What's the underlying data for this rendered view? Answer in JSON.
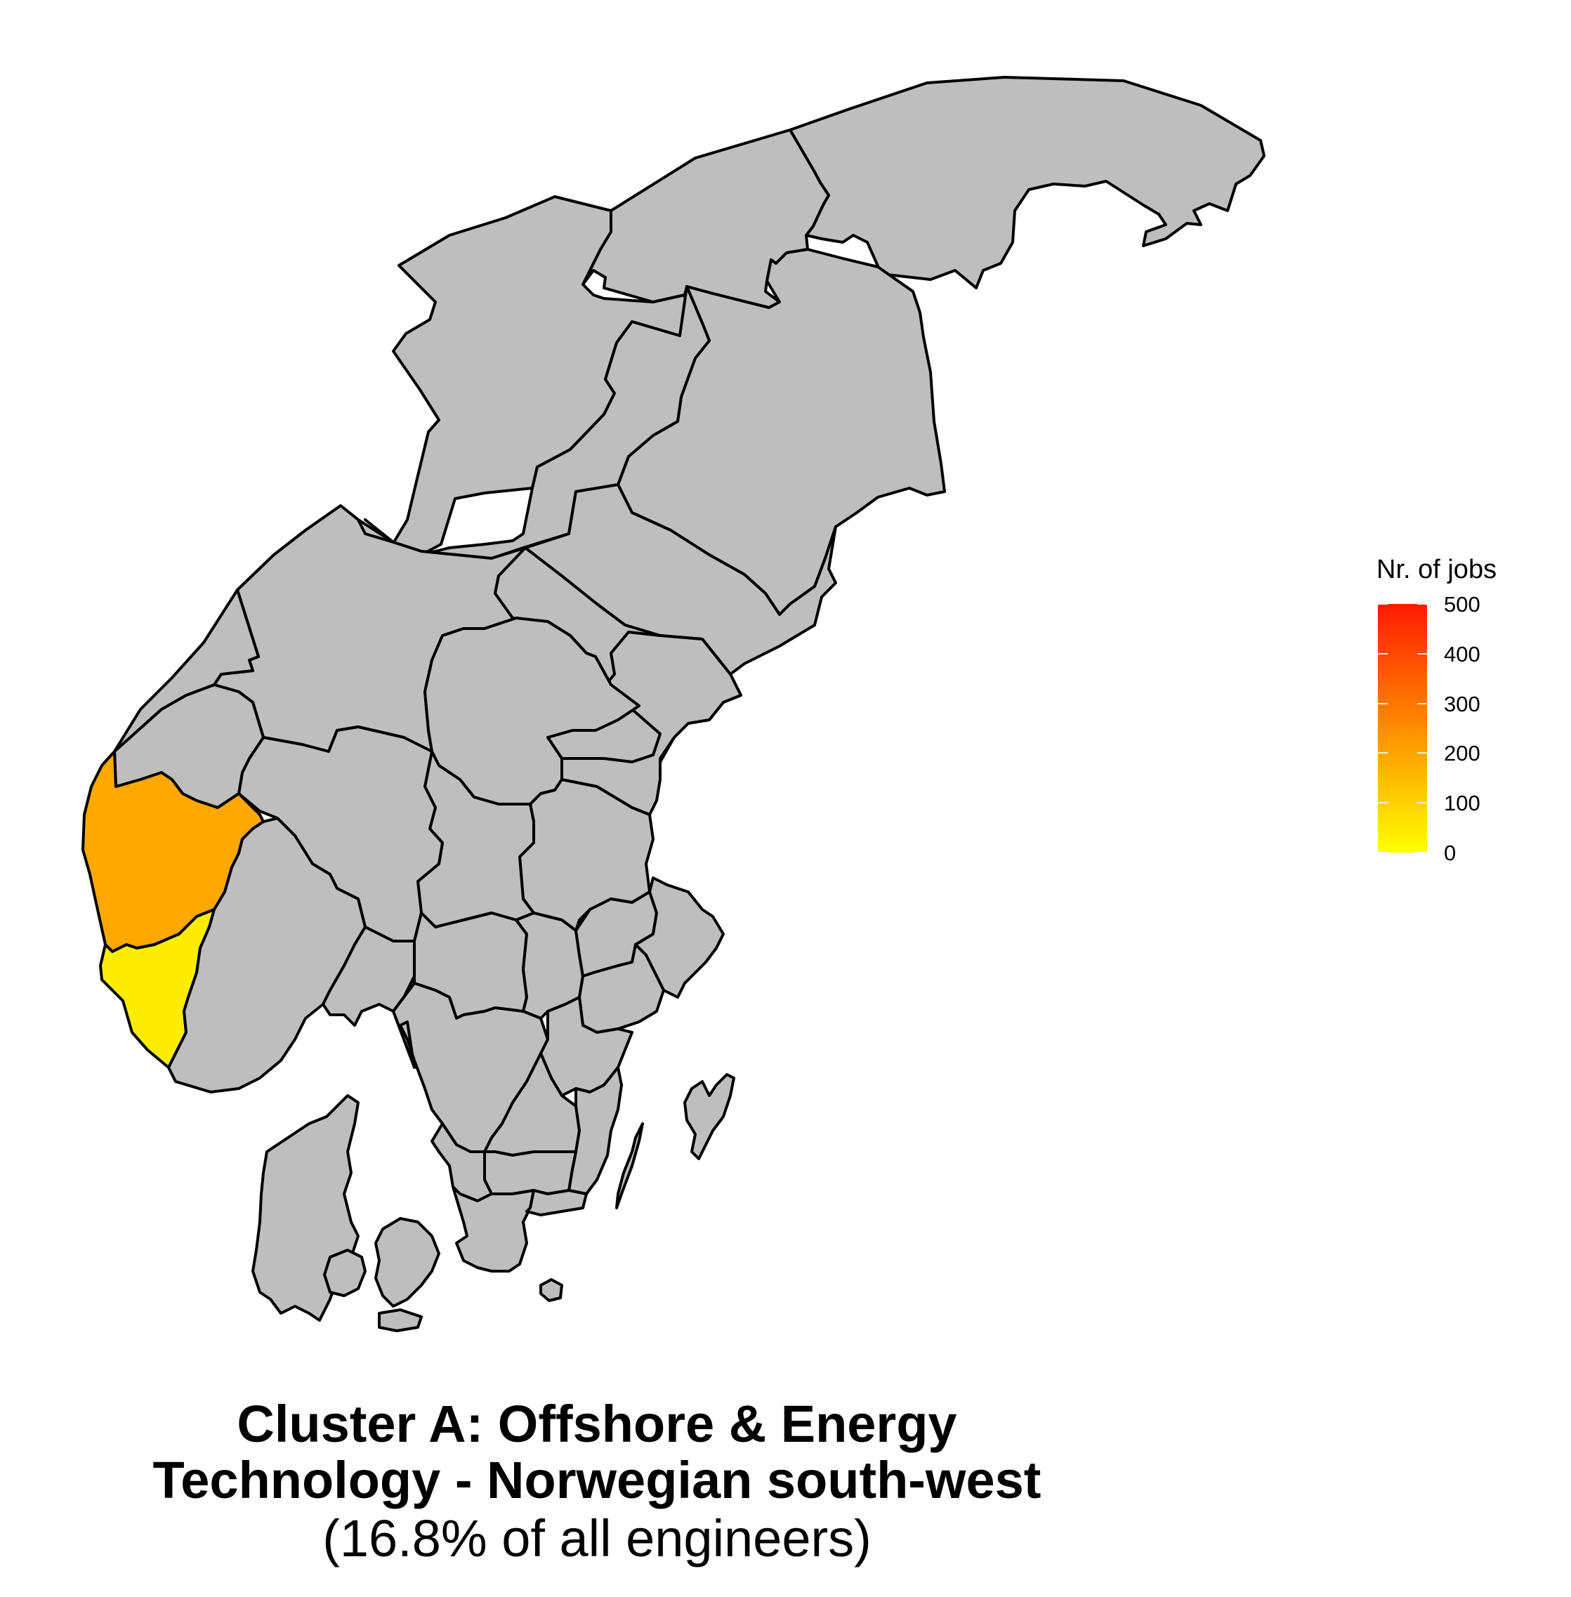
{
  "colors": {
    "no_data": "#bebebe",
    "stroke": "#000000",
    "scale_low": "#ffff00",
    "scale_high": "#ff1a00"
  },
  "legend": {
    "title": "Nr. of jobs",
    "min": 0,
    "max": 500,
    "ticks": [
      "0",
      "100",
      "200",
      "300",
      "400",
      "500"
    ]
  },
  "regions": [
    {
      "id": "rogaland",
      "value": 190
    },
    {
      "id": "vest-agder",
      "value": 40
    }
  ],
  "caption": {
    "line1": "Cluster A: Offshore & Energy",
    "line2": "Technology - Norwegian south-west",
    "line3": "(16.8% of all engineers)"
  }
}
